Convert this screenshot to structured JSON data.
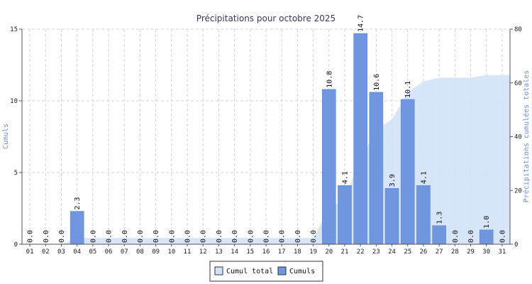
{
  "chart_data": {
    "type": "bar",
    "title": "Précipitations pour octobre 2025",
    "ylabel": "Cumuls",
    "y2label": "Précipitations cumulées totales",
    "ylim": [
      0,
      15
    ],
    "y2lim": [
      0,
      80
    ],
    "yticks": [
      "0",
      "5",
      "10",
      "15"
    ],
    "y2ticks": [
      "0",
      "20",
      "40",
      "60",
      "80"
    ],
    "categories": [
      "01",
      "02",
      "03",
      "04",
      "05",
      "06",
      "07",
      "08",
      "09",
      "10",
      "11",
      "12",
      "13",
      "14",
      "15",
      "16",
      "17",
      "18",
      "19",
      "20",
      "21",
      "22",
      "23",
      "24",
      "25",
      "26",
      "27",
      "28",
      "29",
      "30",
      "31"
    ],
    "series": [
      {
        "name": "Cumuls",
        "type": "bar",
        "axis": "left",
        "color": "#6f96df",
        "values": [
          0.0,
          0.0,
          0.0,
          2.3,
          0.0,
          0.0,
          0.0,
          0.0,
          0.0,
          0.0,
          0.0,
          0.0,
          0.0,
          0.0,
          0.0,
          0.0,
          0.0,
          0.0,
          0.0,
          10.8,
          4.1,
          14.7,
          10.6,
          3.9,
          10.1,
          4.1,
          1.3,
          0.0,
          0.0,
          1.0,
          0.0
        ],
        "labels": [
          "0.0",
          "0.0",
          "0.0",
          "2.3",
          "0.0",
          "0.0",
          "0.0",
          "0.0",
          "0.0",
          "0.0",
          "0.0",
          "0.0",
          "0.0",
          "0.0",
          "0.0",
          "0.0",
          "0.0",
          "0.0",
          "0.0",
          "10.8",
          "4.1",
          "14.7",
          "10.6",
          "3.9",
          "10.1",
          "4.1",
          "1.3",
          "0.0",
          "0.0",
          "1.0",
          "0.0"
        ]
      },
      {
        "name": "Cumul total",
        "type": "area",
        "axis": "right",
        "color": "#d3e2f8",
        "values": [
          0,
          0,
          0,
          2.3,
          2.3,
          2.3,
          2.3,
          2.3,
          2.3,
          2.3,
          2.3,
          2.3,
          2.3,
          2.3,
          2.3,
          2.3,
          2.3,
          2.3,
          2.3,
          13.1,
          17.2,
          31.9,
          42.5,
          46.4,
          56.5,
          60.6,
          61.9,
          61.9,
          61.9,
          62.9,
          62.9
        ]
      }
    ],
    "grid": true,
    "legend": "bottom-center",
    "legend_items": [
      "Cumul total",
      "Cumuls"
    ]
  }
}
